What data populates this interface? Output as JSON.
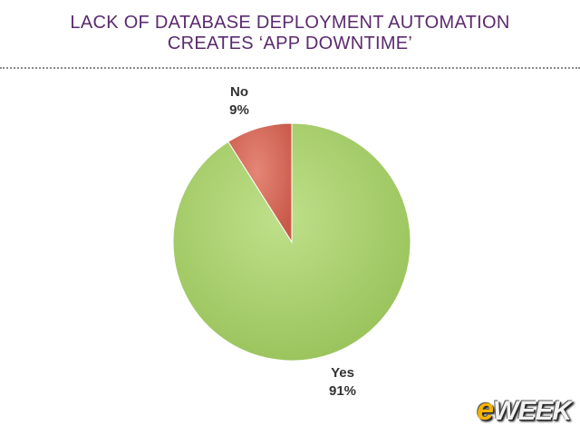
{
  "title_line1": "LACK OF DATABASE DEPLOYMENT AUTOMATION",
  "title_line2": "CREATES ‘APP DOWNTIME’",
  "logo": {
    "prefix": "e",
    "rest": "WEEK"
  },
  "colors": {
    "title": "#5b2a6e",
    "yes": "#a8cf6a",
    "no": "#d96b5b"
  },
  "chart_data": {
    "type": "pie",
    "title": "LACK OF DATABASE DEPLOYMENT AUTOMATION CREATES ‘APP DOWNTIME’",
    "slices": [
      {
        "label": "Yes",
        "pct_label": "91%",
        "value": 91,
        "color": "#a8cf6a"
      },
      {
        "label": "No",
        "pct_label": "9%",
        "value": 9,
        "color": "#d96b5b"
      }
    ],
    "start": "12 o'clock",
    "direction": "clockwise",
    "legend": "none"
  }
}
